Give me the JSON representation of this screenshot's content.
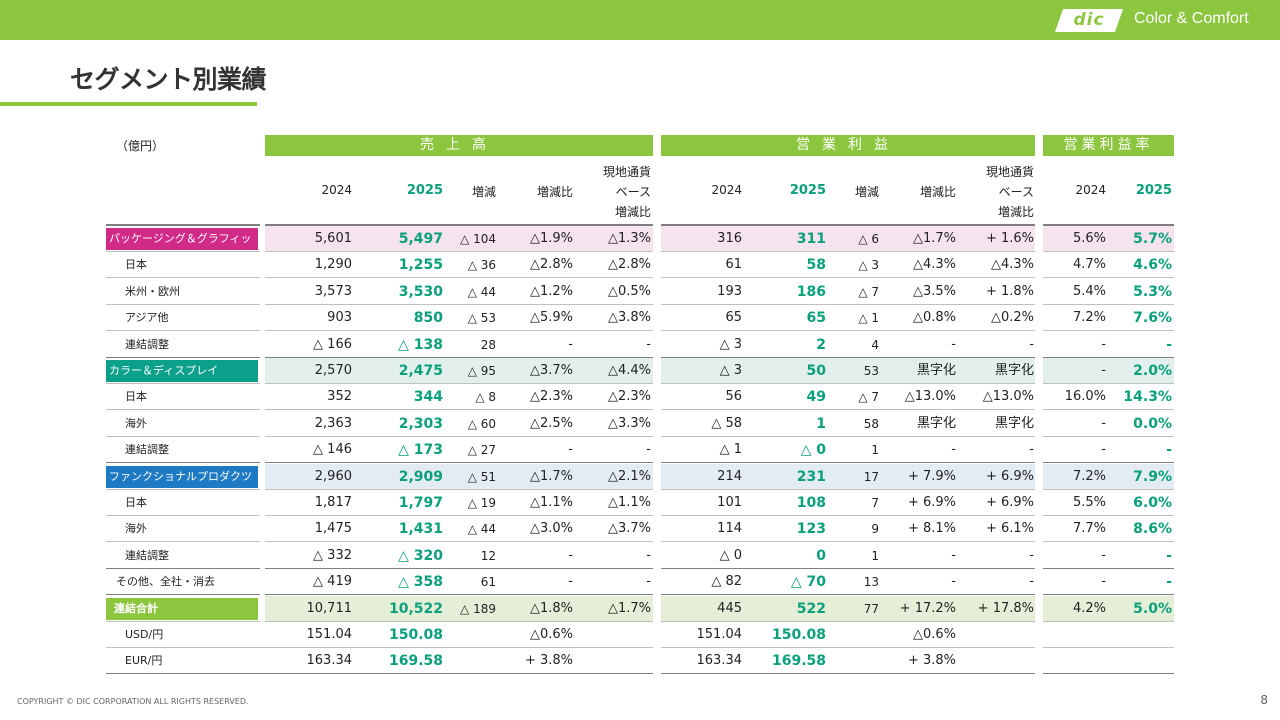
{
  "brand": {
    "logo_text": "dic",
    "tagline": "Color & Comfort"
  },
  "page": {
    "title": "セグメント別業績",
    "unit": "（億円）",
    "footer": "COPYRIGHT © DIC CORPORATION ALL RIGHTS RESERVED.",
    "page_number": "8"
  },
  "groups": {
    "sales": "売上高",
    "op": "営業利益",
    "margin": "営業利益率"
  },
  "columns": {
    "sales": [
      "2024",
      "2025",
      "増減",
      "増減比",
      "現地通貨\nベース\n増減比"
    ],
    "op": [
      "2024",
      "2025",
      "増減",
      "増減比",
      "現地通貨\nベース\n増減比"
    ],
    "margin": [
      "2024",
      "2025"
    ]
  },
  "colors": {
    "accent": "#8cc63f",
    "green_text": "#0aa07c",
    "seg1": "#d12a87",
    "seg2": "#0aa08a",
    "seg3": "#1e7ac2",
    "total": "#8cc63f"
  },
  "rows": [
    {
      "type": "seg",
      "tint": "#f5e3ee",
      "color": "#d12a87",
      "label": "パッケージング＆グラフィック",
      "v": [
        "5,601",
        "5,497",
        "△ 104",
        "△1.9%",
        "△1.3%",
        "316",
        "311",
        "△ 6",
        "△1.7%",
        "+ 1.6%",
        "5.6%",
        "5.7%"
      ]
    },
    {
      "type": "sub",
      "label": "日本",
      "v": [
        "1,290",
        "1,255",
        "△ 36",
        "△2.8%",
        "△2.8%",
        "61",
        "58",
        "△ 3",
        "△4.3%",
        "△4.3%",
        "4.7%",
        "4.6%"
      ]
    },
    {
      "type": "sub",
      "label": "米州・欧州",
      "v": [
        "3,573",
        "3,530",
        "△ 44",
        "△1.2%",
        "△0.5%",
        "193",
        "186",
        "△ 7",
        "△3.5%",
        "+ 1.8%",
        "5.4%",
        "5.3%"
      ]
    },
    {
      "type": "sub",
      "label": "アジア他",
      "v": [
        "903",
        "850",
        "△ 53",
        "△5.9%",
        "△3.8%",
        "65",
        "65",
        "△ 1",
        "△0.8%",
        "△0.2%",
        "7.2%",
        "7.6%"
      ]
    },
    {
      "type": "sub",
      "label": "連結調整",
      "v": [
        "△ 166",
        "△ 138",
        "28",
        "-",
        "-",
        "△ 3",
        "2",
        "4",
        "-",
        "-",
        "-",
        "-"
      ]
    },
    {
      "type": "seg",
      "tint": "#e2efec",
      "color": "#0aa08a",
      "label": "カラー＆ディスプレイ",
      "v": [
        "2,570",
        "2,475",
        "△ 95",
        "△3.7%",
        "△4.4%",
        "△ 3",
        "50",
        "53",
        "黒字化",
        "黒字化",
        "-",
        "2.0%"
      ]
    },
    {
      "type": "sub",
      "label": "日本",
      "v": [
        "352",
        "344",
        "△ 8",
        "△2.3%",
        "△2.3%",
        "56",
        "49",
        "△ 7",
        "△13.0%",
        "△13.0%",
        "16.0%",
        "14.3%"
      ]
    },
    {
      "type": "sub",
      "label": "海外",
      "v": [
        "2,363",
        "2,303",
        "△ 60",
        "△2.5%",
        "△3.3%",
        "△ 58",
        "1",
        "58",
        "黒字化",
        "黒字化",
        "-",
        "0.0%"
      ]
    },
    {
      "type": "sub",
      "label": "連結調整",
      "v": [
        "△ 146",
        "△ 173",
        "△ 27",
        "-",
        "-",
        "△ 1",
        "△ 0",
        "1",
        "-",
        "-",
        "-",
        "-"
      ]
    },
    {
      "type": "seg",
      "tint": "#e3ecf5",
      "color": "#1e7ac2",
      "label": "ファンクショナルプロダクツ",
      "v": [
        "2,960",
        "2,909",
        "△ 51",
        "△1.7%",
        "△2.1%",
        "214",
        "231",
        "17",
        "+ 7.9%",
        "+ 6.9%",
        "7.2%",
        "7.9%"
      ]
    },
    {
      "type": "sub",
      "label": "日本",
      "v": [
        "1,817",
        "1,797",
        "△ 19",
        "△1.1%",
        "△1.1%",
        "101",
        "108",
        "7",
        "+ 6.9%",
        "+ 6.9%",
        "5.5%",
        "6.0%"
      ]
    },
    {
      "type": "sub",
      "label": "海外",
      "v": [
        "1,475",
        "1,431",
        "△ 44",
        "△3.0%",
        "△3.7%",
        "114",
        "123",
        "9",
        "+ 8.1%",
        "+ 6.1%",
        "7.7%",
        "8.6%"
      ]
    },
    {
      "type": "sub",
      "label": "連結調整",
      "v": [
        "△ 332",
        "△ 320",
        "12",
        "-",
        "-",
        "△ 0",
        "0",
        "1",
        "-",
        "-",
        "-",
        "-"
      ]
    },
    {
      "type": "other",
      "label": "その他、全社・消去",
      "v": [
        "△ 419",
        "△ 358",
        "61",
        "-",
        "-",
        "△ 82",
        "△ 70",
        "13",
        "-",
        "-",
        "-",
        "-"
      ]
    },
    {
      "type": "total",
      "tint": "#e5efd7",
      "color": "#8cc63f",
      "label": "連結合計",
      "v": [
        "10,711",
        "10,522",
        "△ 189",
        "△1.8%",
        "△1.7%",
        "445",
        "522",
        "77",
        "+ 17.2%",
        "+ 17.8%",
        "4.2%",
        "5.0%"
      ]
    },
    {
      "type": "fx",
      "label": "USD/円",
      "v": [
        "151.04",
        "150.08",
        "",
        "△0.6%",
        "",
        "151.04",
        "150.08",
        "",
        "△0.6%",
        "",
        "",
        ""
      ]
    },
    {
      "type": "fx",
      "label": "EUR/円",
      "v": [
        "163.34",
        "169.58",
        "",
        "+ 3.8%",
        "",
        "163.34",
        "169.58",
        "",
        "+ 3.8%",
        "",
        "",
        ""
      ]
    }
  ]
}
